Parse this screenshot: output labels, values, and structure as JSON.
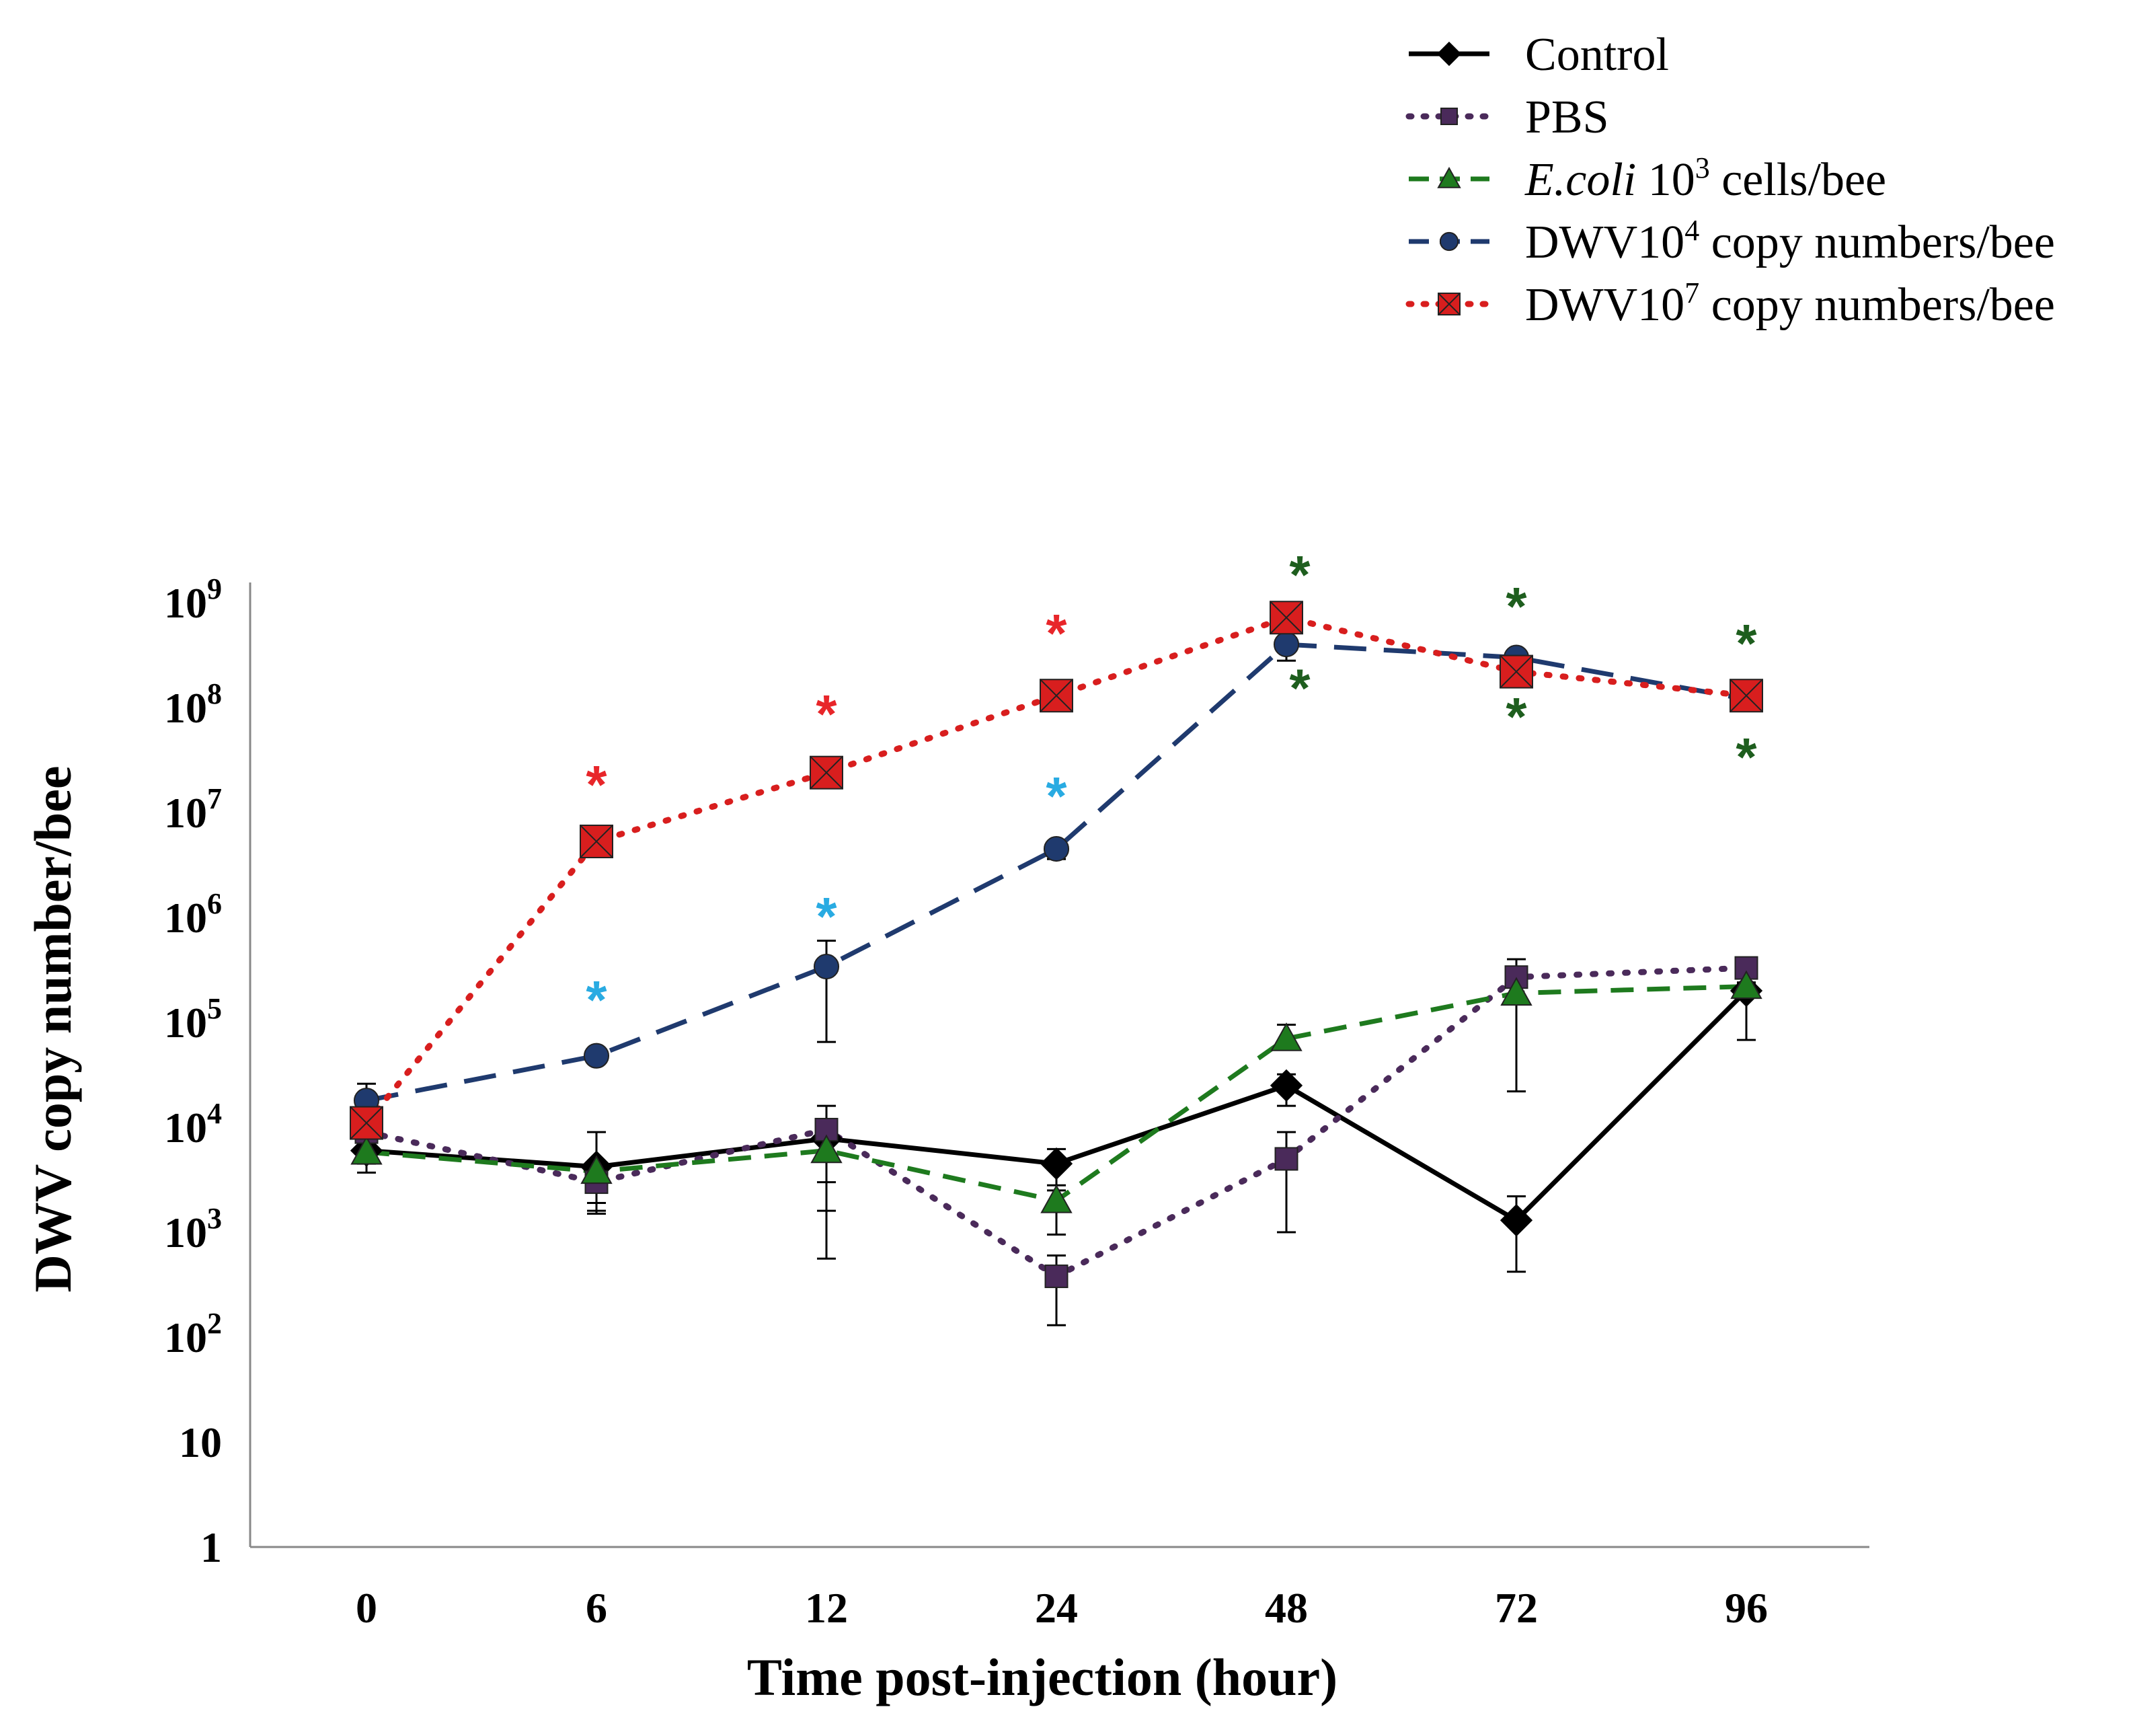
{
  "chart_data": {
    "type": "line",
    "title": "",
    "xlabel": "Time post-injection (hour)",
    "ylabel": "DWV copy number/bee",
    "yscale": "log10",
    "ylim": [
      1,
      1000000000
    ],
    "categories": [
      "0",
      "6",
      "12",
      "24",
      "48",
      "72",
      "96"
    ],
    "y_ticks": [
      {
        "base": "1",
        "exp": ""
      },
      {
        "base": "10",
        "exp": ""
      },
      {
        "base": "10",
        "exp": "2"
      },
      {
        "base": "10",
        "exp": "3"
      },
      {
        "base": "10",
        "exp": "4"
      },
      {
        "base": "10",
        "exp": "5"
      },
      {
        "base": "10",
        "exp": "6"
      },
      {
        "base": "10",
        "exp": "7"
      },
      {
        "base": "10",
        "exp": "8"
      },
      {
        "base": "10",
        "exp": "9"
      }
    ],
    "series": [
      {
        "key": "control",
        "name": "Control",
        "color": "#000000",
        "marker": "diamond",
        "line": "solid",
        "values": [
          6000,
          4200,
          7800,
          4500,
          25000,
          1300,
          200000
        ],
        "err_low": [
          3700,
          1900,
          3000,
          2800,
          16000,
          420,
          68000
        ],
        "err_high": [
          8000,
          9000,
          11000,
          6200,
          32000,
          2200,
          230000
        ]
      },
      {
        "key": "pbs",
        "name": "PBS",
        "color": "#4a2a5a",
        "marker": "square",
        "line": "dotted",
        "values": [
          9000,
          3000,
          9500,
          380,
          5000,
          270000,
          330000
        ],
        "err_low": [
          4500,
          1600,
          560,
          130,
          1000,
          22000,
          280000
        ],
        "err_high": [
          11000,
          3600,
          16000,
          600,
          9000,
          400000,
          360000
        ]
      },
      {
        "key": "ecoli",
        "name": "E.coli",
        "name_sup": "3",
        "name_prefix": " 10",
        "name_suffix": " cells/bee",
        "color": "#1e7a1e",
        "marker": "triangle",
        "line": "dashed",
        "values": [
          5800,
          3800,
          6000,
          2000,
          70000,
          190000,
          220000
        ],
        "err_low": [
          5000,
          1500,
          1600,
          950,
          55000,
          150000,
          200000
        ],
        "err_high": [
          6200,
          4500,
          8500,
          2500,
          95000,
          260000,
          240000
        ]
      },
      {
        "key": "dwv4",
        "name": "DWV10",
        "name_sup": "4",
        "name_suffix": " copy numbers/bee",
        "color": "#1f3a6e",
        "marker": "circle",
        "line": "longdash",
        "values": [
          18000,
          48000,
          340000,
          4500000,
          400000000,
          300000000,
          120000000
        ],
        "err_low": [
          15000,
          44000,
          65000,
          3600000,
          280000000,
          270000000,
          110000000
        ],
        "err_high": [
          26000,
          52000,
          600000,
          5000000,
          460000000,
          330000000,
          130000000
        ]
      },
      {
        "key": "dwv7",
        "name": "DWV10",
        "name_sup": "7",
        "name_suffix": " copy numbers/bee",
        "color": "#d81e1e",
        "marker": "square-x",
        "line": "dotted",
        "values": [
          11000,
          5300000,
          24000000,
          130000000,
          720000000,
          220000000,
          130000000
        ],
        "err_low": [
          10000,
          5000000,
          23000000,
          120000000,
          700000000,
          210000000,
          125000000
        ],
        "err_high": [
          12000,
          5600000,
          25000000,
          140000000,
          740000000,
          230000000,
          135000000
        ]
      }
    ],
    "significance": [
      {
        "label": "*",
        "x": "6",
        "y": 18000000,
        "color": "#e8262a"
      },
      {
        "label": "*",
        "x": "12",
        "y": 85000000,
        "color": "#e8262a"
      },
      {
        "label": "*",
        "x": "24",
        "y": 500000000,
        "color": "#e8262a"
      },
      {
        "label": "*",
        "x": "6",
        "y": 160000,
        "color": "#29abe2"
      },
      {
        "label": "*",
        "x": "12",
        "y": 1000000,
        "color": "#29abe2"
      },
      {
        "label": "*",
        "x": "24",
        "y": 14000000,
        "color": "#29abe2"
      },
      {
        "label": "*",
        "x": "48",
        "y": 1800000000,
        "color": "#1e5e1e"
      },
      {
        "label": "*",
        "x": "48",
        "y": 150000000,
        "color": "#1e5e1e"
      },
      {
        "label": "*",
        "x": "72",
        "y": 900000000,
        "color": "#1e5e1e"
      },
      {
        "label": "*",
        "x": "72",
        "y": 80000000,
        "color": "#1e5e1e"
      },
      {
        "label": "*",
        "x": "96",
        "y": 400000000,
        "color": "#1e5e1e"
      },
      {
        "label": "*",
        "x": "96",
        "y": 33000000,
        "color": "#1e5e1e"
      }
    ],
    "legend_position": "top-right",
    "grid": false
  }
}
